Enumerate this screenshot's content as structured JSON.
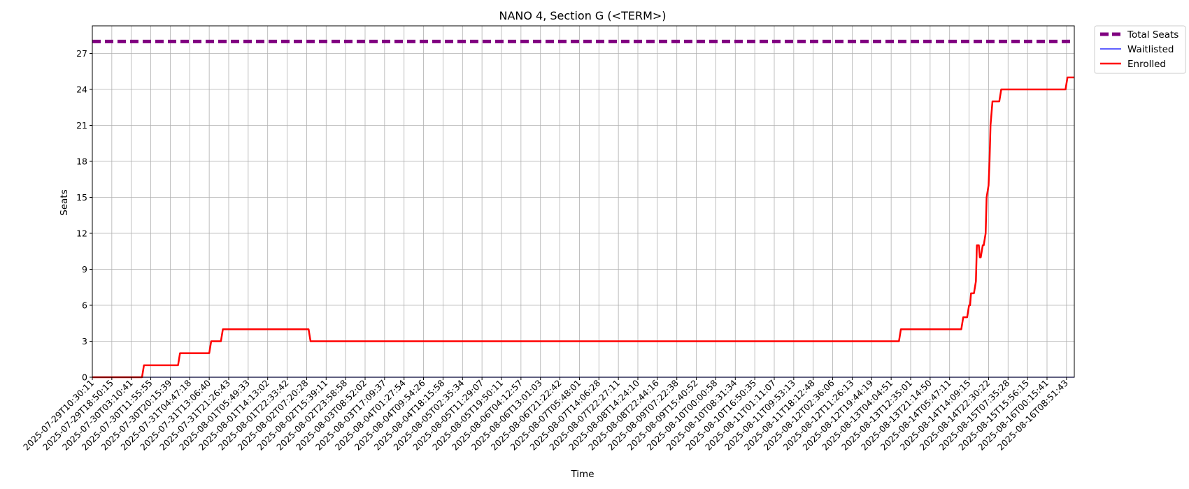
{
  "chart_data": {
    "type": "line",
    "title": "NANO 4, Section G (<TERM>)",
    "xlabel": "Time",
    "ylabel": "Seats",
    "ylim": [
      0,
      29.3
    ],
    "yticks": [
      0,
      3,
      6,
      9,
      12,
      15,
      18,
      21,
      24,
      27
    ],
    "grid": true,
    "legend_position": "outside-top-right",
    "x_tick_labels": [
      "2025-07-29T10:30:11",
      "2025-07-29T18:50:15",
      "2025-07-30T03:10:41",
      "2025-07-30T11:55:55",
      "2025-07-30T20:15:39",
      "2025-07-31T04:47:18",
      "2025-07-31T13:06:40",
      "2025-07-31T21:26:43",
      "2025-08-01T05:49:33",
      "2025-08-01T14:13:02",
      "2025-08-01T22:33:42",
      "2025-08-02T07:20:28",
      "2025-08-02T15:39:11",
      "2025-08-02T23:58:58",
      "2025-08-03T08:52:02",
      "2025-08-03T17:09:37",
      "2025-08-04T01:27:54",
      "2025-08-04T09:54:26",
      "2025-08-04T18:15:58",
      "2025-08-05T02:35:34",
      "2025-08-05T11:29:07",
      "2025-08-05T19:50:11",
      "2025-08-06T04:12:57",
      "2025-08-06T13:01:03",
      "2025-08-06T21:22:42",
      "2025-08-07T05:48:01",
      "2025-08-07T14:06:28",
      "2025-08-07T22:27:11",
      "2025-08-08T14:24:10",
      "2025-08-08T22:44:16",
      "2025-08-09T07:22:38",
      "2025-08-09T15:40:52",
      "2025-08-10T00:00:58",
      "2025-08-10T08:31:34",
      "2025-08-10T16:50:35",
      "2025-08-11T01:11:07",
      "2025-08-11T09:53:13",
      "2025-08-11T18:12:48",
      "2025-08-12T02:36:06",
      "2025-08-12T11:26:13",
      "2025-08-12T19:44:19",
      "2025-08-13T04:04:51",
      "2025-08-13T12:35:01",
      "2025-08-13T21:14:50",
      "2025-08-14T05:47:11",
      "2025-08-14T14:09:15",
      "2025-08-14T22:30:22",
      "2025-08-15T07:35:28",
      "2025-08-15T15:56:15",
      "2025-08-16T00:15:41",
      "2025-08-16T08:51:43"
    ],
    "series": [
      {
        "name": "Total Seats",
        "color": "#800080",
        "style": "dashed",
        "points": [
          [
            0,
            28
          ],
          [
            50.4,
            28
          ]
        ]
      },
      {
        "name": "Waitlisted",
        "color": "#0000ff",
        "style": "solid",
        "points": [
          [
            0,
            0
          ],
          [
            50.4,
            0
          ]
        ]
      },
      {
        "name": "Enrolled",
        "color": "#ff0000",
        "style": "solid",
        "points": [
          [
            0,
            0
          ],
          [
            2.55,
            0
          ],
          [
            2.65,
            1
          ],
          [
            4.4,
            1
          ],
          [
            4.5,
            2
          ],
          [
            6.0,
            2
          ],
          [
            6.1,
            3
          ],
          [
            6.6,
            3
          ],
          [
            6.7,
            4
          ],
          [
            11.1,
            4
          ],
          [
            11.2,
            3
          ],
          [
            41.4,
            3
          ],
          [
            41.5,
            4
          ],
          [
            44.6,
            4
          ],
          [
            44.7,
            5
          ],
          [
            44.9,
            5
          ],
          [
            45.0,
            6
          ],
          [
            45.05,
            6
          ],
          [
            45.1,
            7
          ],
          [
            45.25,
            7
          ],
          [
            45.35,
            8
          ],
          [
            45.4,
            11
          ],
          [
            45.5,
            11
          ],
          [
            45.55,
            10
          ],
          [
            45.6,
            10
          ],
          [
            45.7,
            11
          ],
          [
            45.75,
            11
          ],
          [
            45.85,
            12
          ],
          [
            45.9,
            15
          ],
          [
            46.0,
            16
          ],
          [
            46.05,
            18
          ],
          [
            46.1,
            21
          ],
          [
            46.15,
            22
          ],
          [
            46.2,
            23
          ],
          [
            46.55,
            23
          ],
          [
            46.65,
            24
          ],
          [
            49.95,
            24
          ],
          [
            50.05,
            25
          ],
          [
            50.4,
            25
          ]
        ]
      }
    ]
  }
}
